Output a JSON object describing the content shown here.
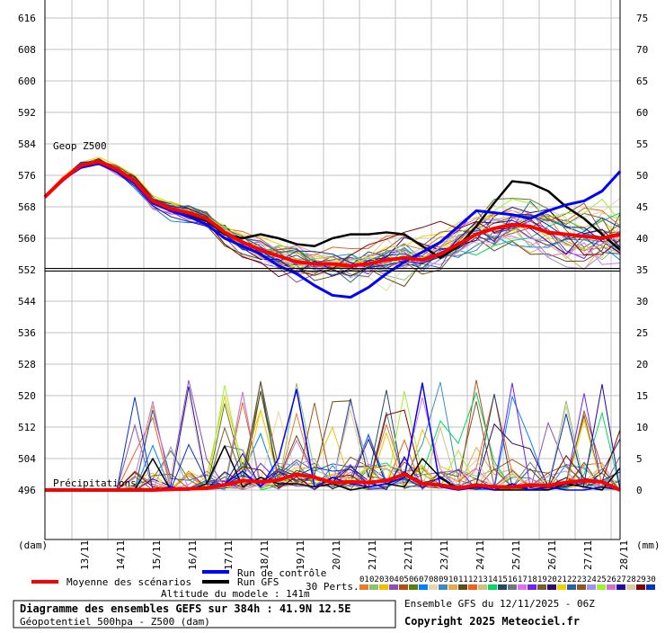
{
  "chart_data": {
    "type": "line",
    "title": "Diagramme des ensembles GEFS sur 384h : 41.9N 12.5E",
    "subtitle": "Géopotentiel 500hpa - Z500 (dam)",
    "run_info": "Ensemble GFS du 12/11/2025 - 06Z",
    "copyright": "Copyright 2025 Meteociel.fr",
    "altitude": "Altitude du modele : 141m",
    "left_axis": {
      "label": "(dam)",
      "range": [
        496,
        616
      ],
      "ticks": [
        "616",
        "608",
        "600",
        "592",
        "584",
        "576",
        "568",
        "560",
        "552",
        "544",
        "536",
        "528",
        "520",
        "512",
        "504",
        "496"
      ]
    },
    "right_axis": {
      "label": "(mm)",
      "range": [
        0,
        75
      ],
      "ticks": [
        "75",
        "70",
        "65",
        "60",
        "55",
        "50",
        "45",
        "40",
        "35",
        "30",
        "25",
        "20",
        "15",
        "10",
        "5",
        "0"
      ]
    },
    "x_ticks": [
      "13/11",
      "14/11",
      "15/11",
      "16/11",
      "17/11",
      "18/11",
      "19/11",
      "20/11",
      "21/11",
      "22/11",
      "23/11",
      "24/11",
      "25/11",
      "26/11",
      "27/11",
      "28/11"
    ],
    "x_step_hours": 12,
    "geop_label": "Geop Z500",
    "precip_label": "Précipitations",
    "reference_level": 552,
    "series": [
      {
        "name": "Moyenne des scénarios",
        "color": "#ff0000",
        "z500": [
          570.5,
          575,
          578.5,
          579.5,
          577.5,
          574.5,
          569.5,
          567.5,
          566.5,
          565,
          561.5,
          559,
          557,
          555.5,
          554,
          553.5,
          553.5,
          553,
          553.5,
          554.5,
          555,
          554.5,
          556,
          558.5,
          561,
          562.5,
          563.5,
          563,
          561.5,
          561,
          560.5,
          560,
          561
        ],
        "precip": [
          0,
          0,
          0,
          0,
          0,
          0,
          0,
          0.1,
          0.2,
          0.3,
          0.8,
          1.5,
          1.3,
          1.6,
          2.5,
          2,
          1.2,
          1.3,
          1.2,
          1.5,
          2.5,
          1,
          0.8,
          0.3,
          0.8,
          0.5,
          0.5,
          0.8,
          0.7,
          1.2,
          1.5,
          1.3,
          0
        ]
      },
      {
        "name": "Run de contrôle",
        "color": "#0000ff",
        "z500": [
          570.5,
          575,
          578,
          579,
          577,
          574,
          569,
          567,
          565.5,
          563.5,
          560,
          558,
          556,
          553,
          551,
          548,
          545.5,
          545,
          547.5,
          551,
          554,
          556.5,
          559,
          563,
          567,
          566.5,
          566,
          565,
          567,
          568.5,
          569.5,
          572,
          577
        ],
        "precip": [
          0,
          0,
          0,
          0,
          0,
          0,
          0,
          0.5,
          0,
          0.5,
          1,
          3,
          0.5,
          5,
          16,
          0.5,
          2,
          1,
          0.5,
          1,
          2,
          17,
          0.5,
          0,
          0.5,
          0,
          1,
          0,
          0.5,
          0,
          0,
          0.5,
          0
        ]
      },
      {
        "name": "Run GFS",
        "color": "#000000",
        "z500": [
          570.5,
          575,
          578.5,
          579.5,
          577.5,
          574,
          569.5,
          567,
          566,
          564.5,
          561,
          560,
          561,
          560,
          558.5,
          558,
          560,
          561,
          561,
          561.5,
          561,
          558,
          555,
          558,
          563,
          569,
          574.5,
          574,
          572,
          568,
          565,
          561,
          557
        ],
        "precip": [
          0,
          0,
          0,
          0,
          0,
          0,
          5,
          0,
          0,
          1,
          7,
          0.5,
          2,
          1,
          1,
          0.5,
          1,
          0,
          0.5,
          1,
          0.5,
          5,
          2,
          0,
          0.5,
          0,
          0,
          0,
          0,
          1,
          0.5,
          0,
          3.5
        ]
      }
    ],
    "perturbations": {
      "label": "30 Perts.",
      "ids": [
        "01",
        "02",
        "03",
        "04",
        "05",
        "06",
        "07",
        "08",
        "09",
        "10",
        "11",
        "12",
        "13",
        "14",
        "15",
        "16",
        "17",
        "18",
        "19",
        "20",
        "21",
        "22",
        "23",
        "24",
        "25",
        "26",
        "27",
        "28",
        "29",
        "30"
      ],
      "colors": [
        "#e87d2e",
        "#88c46c",
        "#f0c000",
        "#8c50b0",
        "#b05010",
        "#588010",
        "#0080ff",
        "#e8d4b0",
        "#3a8cc0",
        "#e8a850",
        "#604c18",
        "#f06018",
        "#d0c080",
        "#00d860",
        "#244860",
        "#687880",
        "#e070f0",
        "#7020f0",
        "#785c30",
        "#300870",
        "#f0d000",
        "#2860a0",
        "#905820",
        "#a090f0",
        "#a0f030",
        "#d070d0",
        "#2008a0",
        "#e0c8a0",
        "#800000",
        "#0030c0"
      ]
    }
  }
}
